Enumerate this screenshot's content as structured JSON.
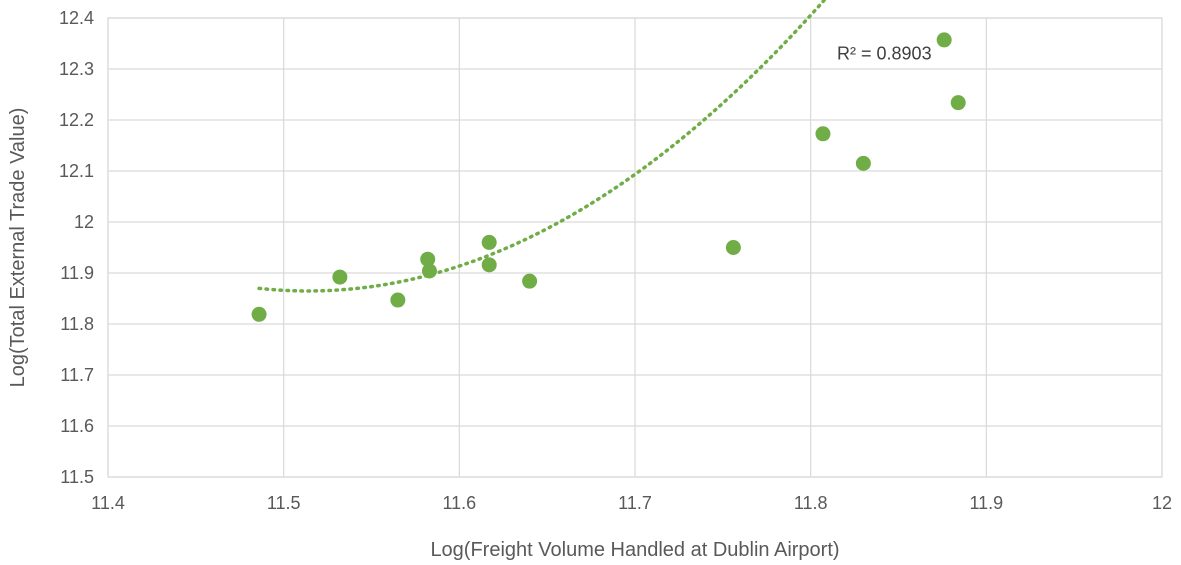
{
  "chart_data": {
    "type": "scatter",
    "title": "",
    "xlabel": "Log(Freight Volume Handled at Dublin Airport)",
    "ylabel": "Log(Total External Trade Value)",
    "xlim": [
      11.4,
      12
    ],
    "ylim": [
      11.5,
      12.4
    ],
    "x_ticks": [
      "11.4",
      "11.5",
      "11.6",
      "11.7",
      "11.8",
      "11.9",
      "12"
    ],
    "y_ticks": [
      "11.5",
      "11.6",
      "11.7",
      "11.8",
      "11.9",
      "12",
      "12.1",
      "12.2",
      "12.3",
      "12.4"
    ],
    "grid": true,
    "legend": "none",
    "series": [
      {
        "color": "#70ad47",
        "points": [
          {
            "x": 11.486,
            "y": 11.819
          },
          {
            "x": 11.532,
            "y": 11.892
          },
          {
            "x": 11.565,
            "y": 11.847
          },
          {
            "x": 11.582,
            "y": 11.927
          },
          {
            "x": 11.583,
            "y": 11.904
          },
          {
            "x": 11.617,
            "y": 11.96
          },
          {
            "x": 11.617,
            "y": 11.916
          },
          {
            "x": 11.64,
            "y": 11.884
          },
          {
            "x": 11.756,
            "y": 11.95
          },
          {
            "x": 11.807,
            "y": 12.173
          },
          {
            "x": 11.83,
            "y": 12.115
          },
          {
            "x": 11.876,
            "y": 12.357
          },
          {
            "x": 11.884,
            "y": 12.234
          }
        ],
        "trendline": {
          "type": "polynomial",
          "coefficients": [
            11.866,
            -0.185,
            6.61
          ],
          "x_center": 11.5,
          "x_range": [
            11.486,
            11.884
          ],
          "label": "R² = 0.8903",
          "label_anchor": {
            "x": 11.815,
            "y": 12.33
          },
          "color": "#70ad47"
        }
      }
    ]
  }
}
